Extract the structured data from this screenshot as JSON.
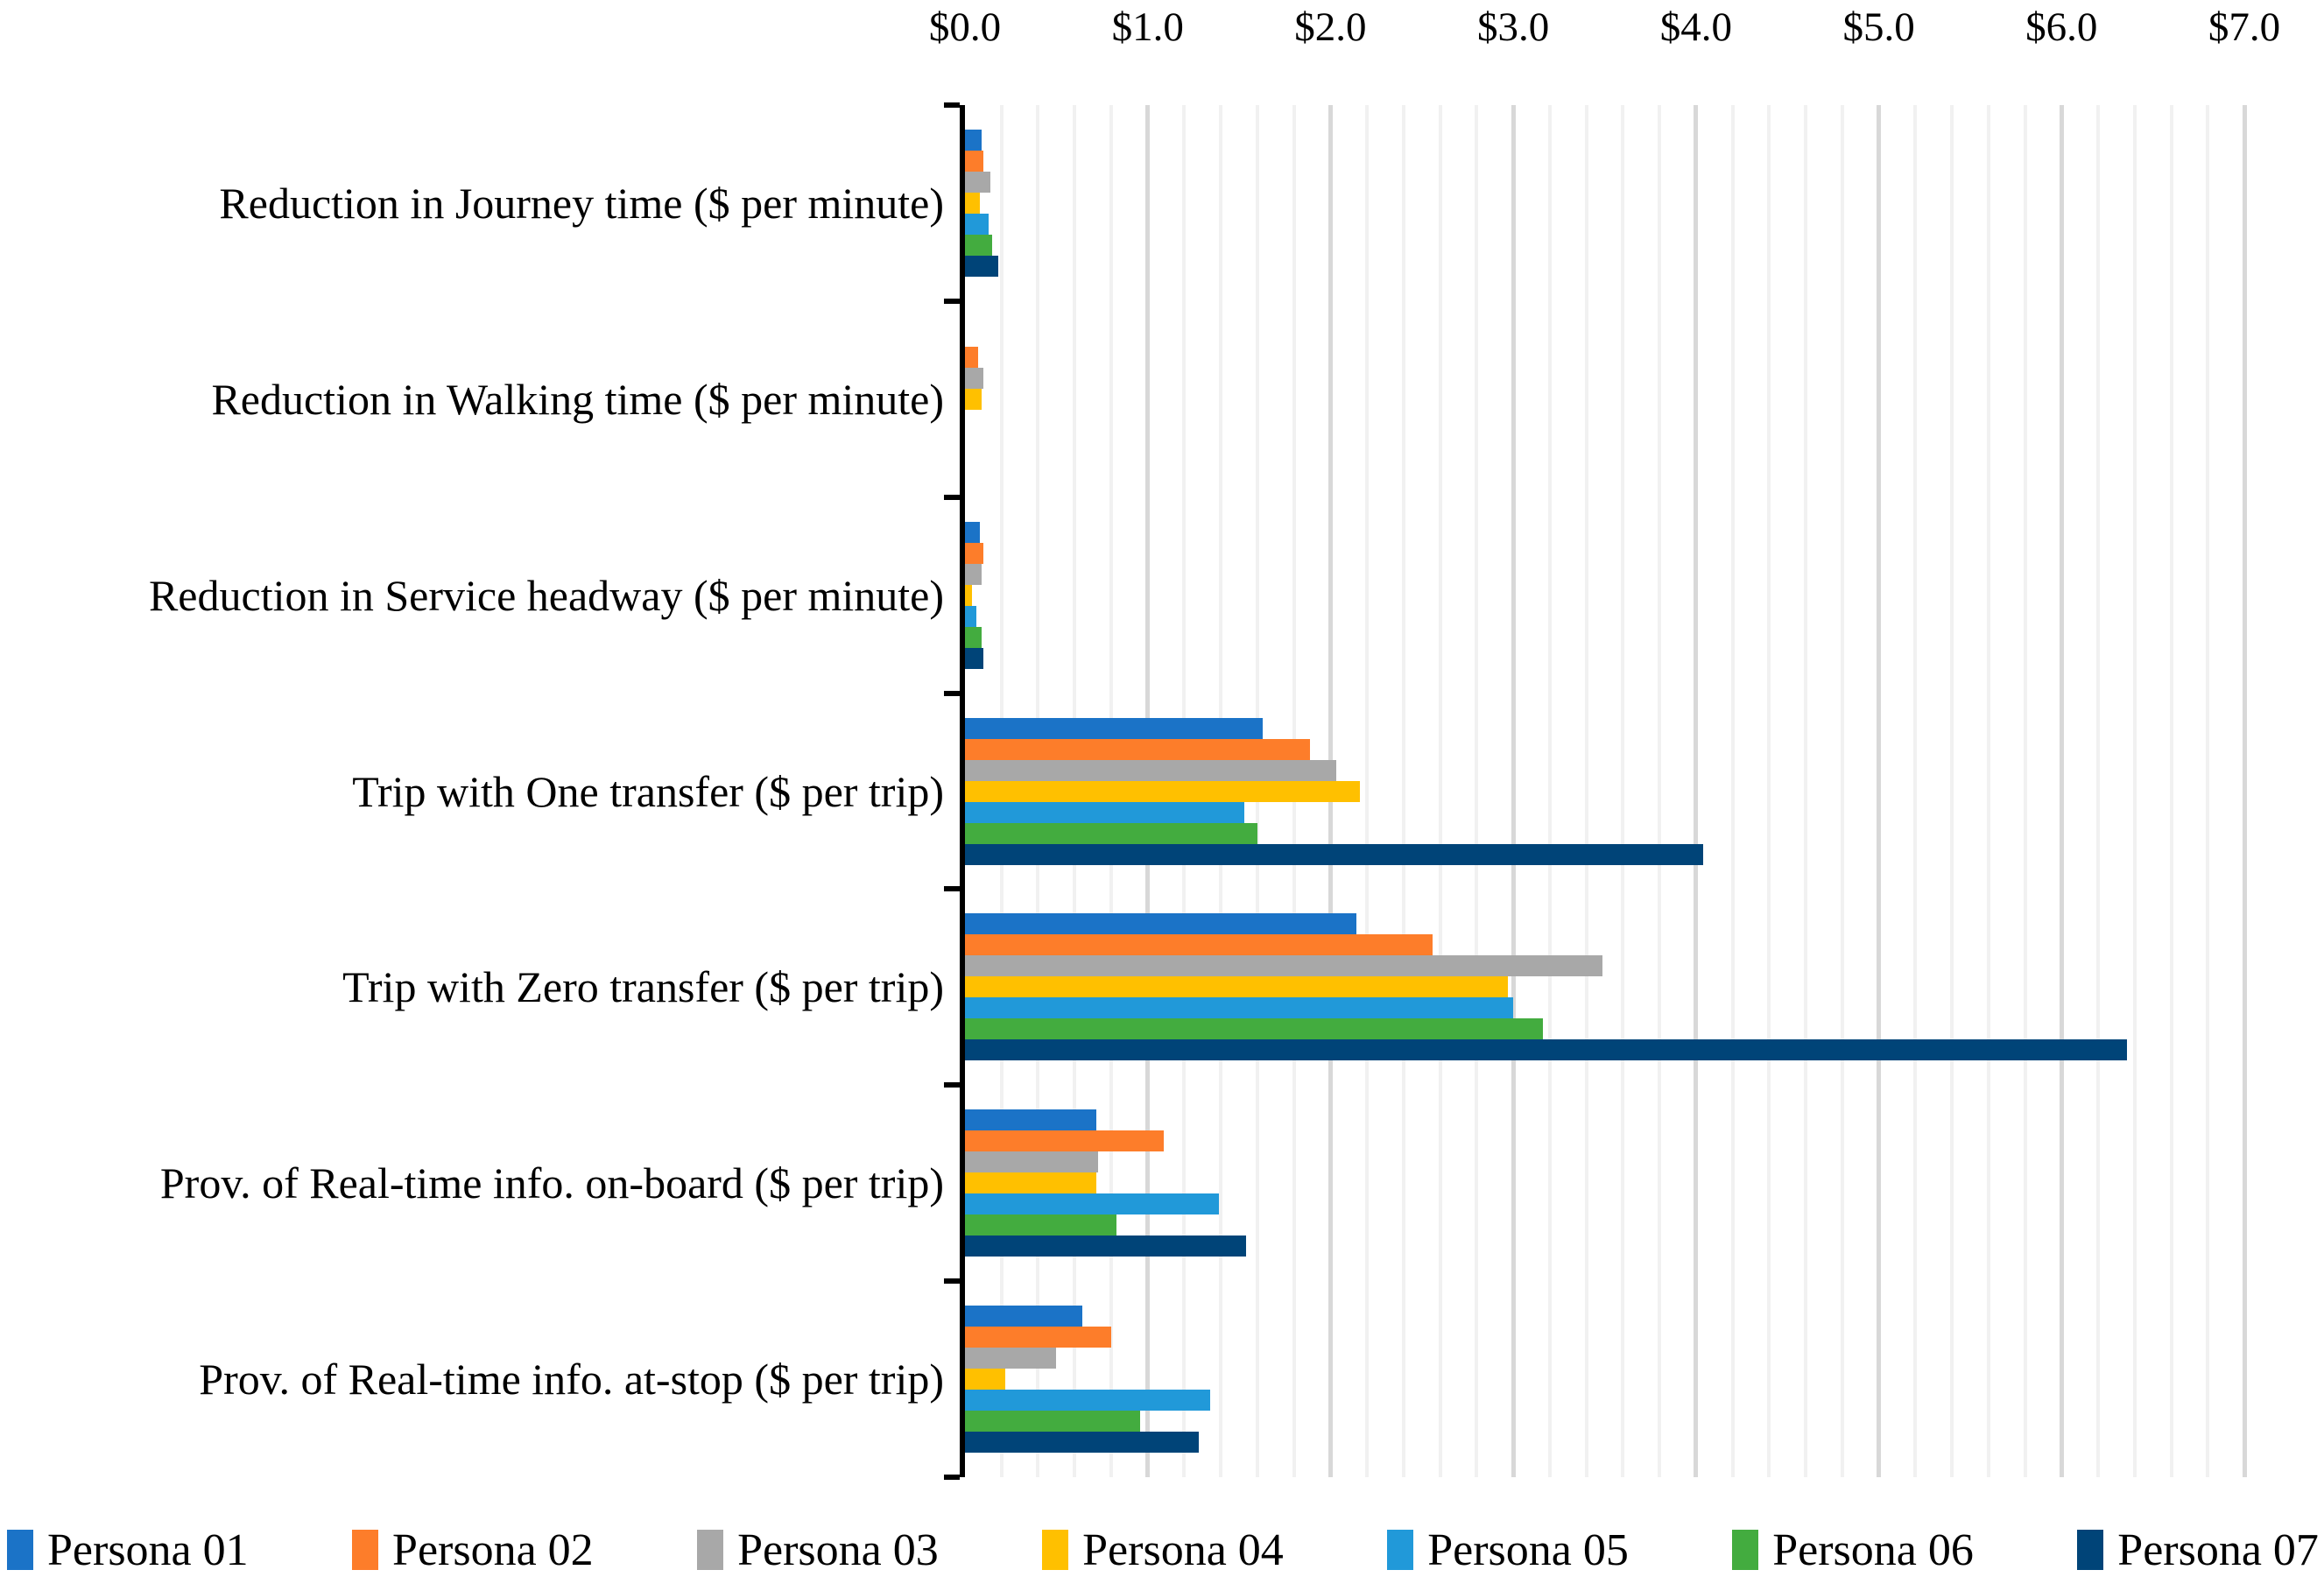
{
  "chart_data": {
    "type": "bar",
    "orientation": "horizontal",
    "title": "",
    "categories": [
      "Reduction in Journey time ($ per minute)",
      "Reduction in Walking time ($ per minute)",
      "Reduction in Service headway ($ per minute)",
      "Trip with One transfer ($ per trip)",
      "Trip with Zero transfer ($ per trip)",
      "Prov. of Real-time info. on-board ($ per trip)",
      "Prov. of Real-time info. at-stop ($ per trip)"
    ],
    "series": [
      {
        "name": "Persona 01",
        "color": "#1B73C7",
        "values": [
          0.09,
          0.0,
          0.08,
          1.63,
          2.14,
          0.72,
          0.64
        ]
      },
      {
        "name": "Persona 02",
        "color": "#FD7D2A",
        "values": [
          0.1,
          0.07,
          0.1,
          1.89,
          2.56,
          1.09,
          0.8
        ]
      },
      {
        "name": "Persona 03",
        "color": "#A8A8A8",
        "values": [
          0.14,
          0.1,
          0.09,
          2.03,
          3.49,
          0.73,
          0.5
        ]
      },
      {
        "name": "Persona 04",
        "color": "#FFC000",
        "values": [
          0.08,
          0.09,
          0.04,
          2.16,
          2.97,
          0.72,
          0.22
        ]
      },
      {
        "name": "Persona 05",
        "color": "#2199D9",
        "values": [
          0.13,
          0.0,
          0.06,
          1.53,
          3.0,
          1.39,
          1.34
        ]
      },
      {
        "name": "Persona 06",
        "color": "#43AC3F",
        "values": [
          0.15,
          0.0,
          0.09,
          1.6,
          3.16,
          0.83,
          0.96
        ]
      },
      {
        "name": "Persona 07",
        "color": "#004478",
        "values": [
          0.18,
          0.0,
          0.1,
          4.04,
          6.36,
          1.54,
          1.28
        ]
      }
    ],
    "x_axis": {
      "position": "top",
      "min": 0,
      "max": 7,
      "major_step": 1.0,
      "minor_step": 0.2,
      "tick_labels": [
        "$0.0",
        "$1.0",
        "$2.0",
        "$3.0",
        "$4.0",
        "$5.0",
        "$6.0",
        "$7.0"
      ]
    },
    "grid": {
      "minor": true,
      "major": true
    },
    "legend": {
      "position": "bottom",
      "items": [
        "Persona 01",
        "Persona 02",
        "Persona 03",
        "Persona 04",
        "Persona 05",
        "Persona 06",
        "Persona 07"
      ]
    }
  }
}
